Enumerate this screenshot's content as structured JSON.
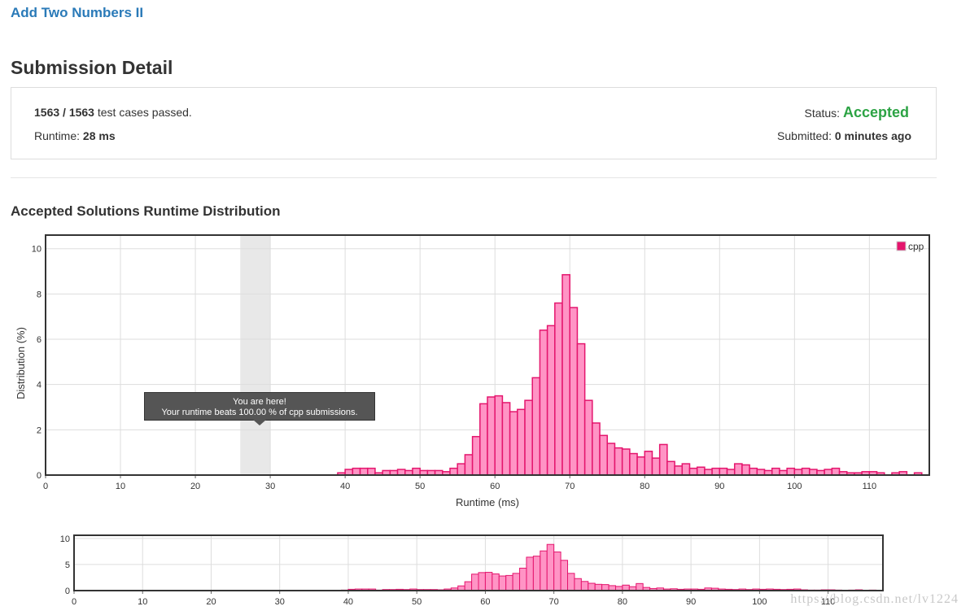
{
  "problem": {
    "title": "Add Two Numbers II"
  },
  "page_title": "Submission Detail",
  "result": {
    "passed": "1563 / 1563",
    "passed_suffix": "test cases passed.",
    "runtime_label": "Runtime:",
    "runtime_value": "28 ms",
    "status_label": "Status:",
    "status_value": "Accepted",
    "submitted_label": "Submitted:",
    "submitted_value": "0 minutes ago"
  },
  "distribution_title": "Accepted Solutions Runtime Distribution",
  "tooltip": {
    "line1": "You are here!",
    "line2": "Your runtime beats 100.00 % of cpp submissions."
  },
  "watermark": "https://blog.csdn.net/lv1224",
  "chart_data": [
    {
      "type": "bar",
      "title": "",
      "xlabel": "Runtime (ms)",
      "ylabel": "Distribution (%)",
      "xlim": [
        0,
        118
      ],
      "ylim": [
        0,
        10.6
      ],
      "x_ticks": [
        0,
        10,
        20,
        30,
        40,
        50,
        60,
        70,
        80,
        90,
        100,
        110
      ],
      "y_ticks": [
        0,
        2,
        4,
        6,
        8,
        10
      ],
      "grid": true,
      "legend": "top-right",
      "highlight_range": [
        26,
        30
      ],
      "colors": {
        "fill": "#ff94c5",
        "stroke": "#e4156d",
        "highlight": "#e8e8e8"
      },
      "series": [
        {
          "name": "cpp",
          "x": [
            39,
            40,
            41,
            42,
            43,
            44,
            45,
            46,
            47,
            48,
            49,
            50,
            51,
            52,
            53,
            54,
            55,
            56,
            57,
            58,
            59,
            60,
            61,
            62,
            63,
            64,
            65,
            66,
            67,
            68,
            69,
            70,
            71,
            72,
            73,
            74,
            75,
            76,
            77,
            78,
            79,
            80,
            81,
            82,
            83,
            84,
            85,
            86,
            87,
            88,
            89,
            90,
            91,
            92,
            93,
            94,
            95,
            96,
            97,
            98,
            99,
            100,
            101,
            102,
            103,
            104,
            105,
            106,
            107,
            108,
            109,
            110,
            111,
            113,
            114,
            116
          ],
          "values": [
            0.1,
            0.25,
            0.3,
            0.3,
            0.3,
            0.1,
            0.2,
            0.2,
            0.25,
            0.2,
            0.3,
            0.2,
            0.2,
            0.2,
            0.15,
            0.3,
            0.5,
            0.9,
            1.7,
            3.15,
            3.45,
            3.5,
            3.2,
            2.8,
            2.9,
            3.3,
            4.3,
            6.4,
            6.6,
            7.6,
            8.85,
            7.4,
            5.8,
            3.3,
            2.3,
            1.75,
            1.4,
            1.2,
            1.15,
            0.95,
            0.8,
            1.05,
            0.75,
            1.35,
            0.6,
            0.4,
            0.5,
            0.3,
            0.35,
            0.25,
            0.3,
            0.3,
            0.25,
            0.5,
            0.45,
            0.3,
            0.25,
            0.2,
            0.3,
            0.2,
            0.3,
            0.25,
            0.3,
            0.25,
            0.2,
            0.25,
            0.3,
            0.15,
            0.1,
            0.1,
            0.15,
            0.15,
            0.1,
            0.1,
            0.15,
            0.1
          ]
        }
      ]
    },
    {
      "type": "bar",
      "title": "",
      "xlabel": "",
      "ylabel": "",
      "xlim": [
        0,
        118
      ],
      "ylim": [
        0,
        10.6
      ],
      "x_ticks": [
        0,
        10,
        20,
        30,
        40,
        50,
        60,
        70,
        80,
        90,
        100,
        110
      ],
      "y_ticks": [
        0,
        5,
        10
      ],
      "grid": true,
      "colors": {
        "fill": "#ff94c5",
        "stroke": "#e4156d"
      },
      "series": [
        {
          "x": [
            39,
            40,
            41,
            42,
            43,
            44,
            45,
            46,
            47,
            48,
            49,
            50,
            51,
            52,
            53,
            54,
            55,
            56,
            57,
            58,
            59,
            60,
            61,
            62,
            63,
            64,
            65,
            66,
            67,
            68,
            69,
            70,
            71,
            72,
            73,
            74,
            75,
            76,
            77,
            78,
            79,
            80,
            81,
            82,
            83,
            84,
            85,
            86,
            87,
            88,
            89,
            90,
            91,
            92,
            93,
            94,
            95,
            96,
            97,
            98,
            99,
            100,
            101,
            102,
            103,
            104,
            105,
            106,
            107,
            108,
            109,
            110,
            111,
            113,
            114,
            116
          ],
          "values": [
            0.1,
            0.25,
            0.3,
            0.3,
            0.3,
            0.1,
            0.2,
            0.2,
            0.25,
            0.2,
            0.3,
            0.2,
            0.2,
            0.2,
            0.15,
            0.3,
            0.5,
            0.9,
            1.7,
            3.15,
            3.45,
            3.5,
            3.2,
            2.8,
            2.9,
            3.3,
            4.3,
            6.4,
            6.6,
            7.6,
            8.85,
            7.4,
            5.8,
            3.3,
            2.3,
            1.75,
            1.4,
            1.2,
            1.15,
            0.95,
            0.8,
            1.05,
            0.75,
            1.35,
            0.6,
            0.4,
            0.5,
            0.3,
            0.35,
            0.25,
            0.3,
            0.3,
            0.25,
            0.5,
            0.45,
            0.3,
            0.25,
            0.2,
            0.3,
            0.2,
            0.3,
            0.25,
            0.3,
            0.25,
            0.2,
            0.25,
            0.3,
            0.15,
            0.1,
            0.1,
            0.15,
            0.15,
            0.1,
            0.1,
            0.15,
            0.1
          ]
        }
      ]
    }
  ]
}
